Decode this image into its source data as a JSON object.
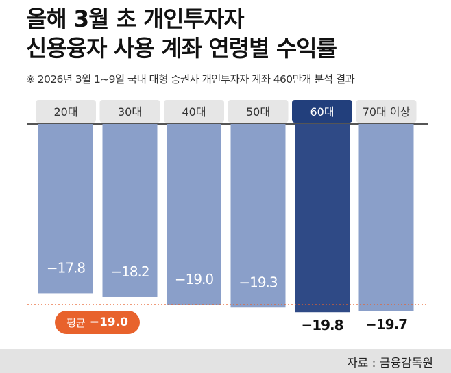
{
  "title_line1": "올해 3월 초 개인투자자",
  "title_line2": "신용융자 사용 계좌 연령별 수익률",
  "subtitle": "※ 2026년 3월 1~9일 국내 대형 증권사 개인투자자 계좌 460만개 분석 결과",
  "average": {
    "label": "평균",
    "value_text": "−19.0",
    "value": -19.0
  },
  "source": "자료 : 금융감독원",
  "colors": {
    "bar": "#8a9fc9",
    "highlight_bar": "#2f4a86",
    "highlight_header": "#223f7c",
    "average_line": "#e8622c"
  },
  "chart_data": {
    "type": "bar",
    "orientation": "vertical",
    "direction": "downward",
    "categories": [
      "20대",
      "30대",
      "40대",
      "50대",
      "60대",
      "70대 이상"
    ],
    "values": [
      -17.8,
      -18.2,
      -19.0,
      -19.3,
      -19.8,
      -19.7
    ],
    "value_labels": [
      "−17.8",
      "−18.2",
      "−19.0",
      "−19.3",
      "−19.8",
      "−19.7"
    ],
    "highlight_index": 4,
    "reference_line": {
      "value": -19.0
    },
    "ylim": [
      -20,
      0
    ]
  }
}
